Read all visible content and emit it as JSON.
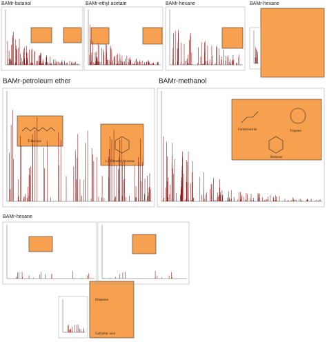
{
  "panels": {
    "row1": [
      "BAMr-butanol",
      "BAMr-ethyl acetate",
      "BAMr-hexane",
      "BAMr-hexane"
    ],
    "petroleum": {
      "title": "BAMr-petroleum ether",
      "compounds": [
        "Tridecane",
        "1,3-Dimethylbenzene"
      ]
    },
    "methanol": {
      "title": "BAMr-methanol",
      "compounds": [
        "Fumaronitrile",
        "Tropone",
        "Benzene"
      ]
    },
    "row3": {
      "title": "BAMr-hexane"
    },
    "row4": {
      "compounds": [
        "Ethanone",
        "Carbamic acid"
      ]
    }
  }
}
